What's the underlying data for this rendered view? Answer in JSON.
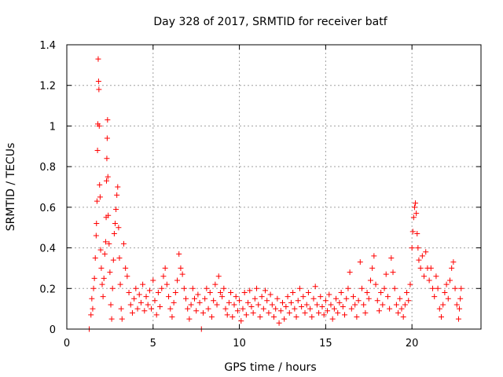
{
  "chart_data": {
    "type": "scatter",
    "title": "Day 328 of 2017, SRMTID for receiver batf",
    "xlabel": "GPS time / hours",
    "ylabel": "SRMTID / TECUs",
    "xlim": [
      0,
      24
    ],
    "ylim": [
      0,
      1.4
    ],
    "xticks": [
      0,
      5,
      10,
      15,
      20
    ],
    "xtick_labels": [
      "0",
      "5",
      "10",
      "15",
      "20"
    ],
    "yticks": [
      0,
      0.2,
      0.4,
      0.6,
      0.8,
      1,
      1.2,
      1.4
    ],
    "ytick_labels": [
      "0",
      "0.2",
      "0.4",
      "0.6",
      "0.8",
      "1",
      "1.2",
      "1.4"
    ],
    "grid": true,
    "marker": "+",
    "series_color": "#ff0000",
    "series": [
      {
        "name": "SRMTID",
        "points": [
          [
            1.3,
            0.0
          ],
          [
            1.4,
            0.07
          ],
          [
            1.45,
            0.15
          ],
          [
            1.5,
            0.1
          ],
          [
            1.55,
            0.2
          ],
          [
            1.6,
            0.25
          ],
          [
            1.65,
            0.35
          ],
          [
            1.7,
            0.46
          ],
          [
            1.72,
            0.52
          ],
          [
            1.75,
            0.63
          ],
          [
            1.78,
            0.88
          ],
          [
            1.8,
            1.01
          ],
          [
            1.82,
            1.33
          ],
          [
            1.84,
            1.22
          ],
          [
            1.86,
            1.18
          ],
          [
            1.88,
            1.0
          ],
          [
            1.9,
            0.71
          ],
          [
            1.93,
            0.65
          ],
          [
            1.96,
            0.39
          ],
          [
            2.0,
            0.3
          ],
          [
            2.05,
            0.22
          ],
          [
            2.1,
            0.16
          ],
          [
            2.15,
            0.25
          ],
          [
            2.2,
            0.37
          ],
          [
            2.25,
            0.43
          ],
          [
            2.28,
            0.55
          ],
          [
            2.3,
            0.73
          ],
          [
            2.32,
            0.84
          ],
          [
            2.34,
            0.94
          ],
          [
            2.36,
            1.03
          ],
          [
            2.38,
            0.75
          ],
          [
            2.4,
            0.56
          ],
          [
            2.45,
            0.42
          ],
          [
            2.5,
            0.28
          ],
          [
            2.55,
            0.12
          ],
          [
            2.6,
            0.05
          ],
          [
            2.65,
            0.2
          ],
          [
            2.7,
            0.34
          ],
          [
            2.75,
            0.47
          ],
          [
            2.8,
            0.52
          ],
          [
            2.85,
            0.59
          ],
          [
            2.9,
            0.66
          ],
          [
            2.95,
            0.7
          ],
          [
            3.0,
            0.5
          ],
          [
            3.05,
            0.35
          ],
          [
            3.1,
            0.22
          ],
          [
            3.15,
            0.1
          ],
          [
            3.2,
            0.05
          ],
          [
            3.3,
            0.42
          ],
          [
            3.4,
            0.3
          ],
          [
            3.5,
            0.26
          ],
          [
            3.6,
            0.18
          ],
          [
            3.7,
            0.12
          ],
          [
            3.8,
            0.08
          ],
          [
            3.9,
            0.15
          ],
          [
            4.0,
            0.2
          ],
          [
            4.1,
            0.1
          ],
          [
            4.2,
            0.17
          ],
          [
            4.3,
            0.13
          ],
          [
            4.4,
            0.22
          ],
          [
            4.5,
            0.09
          ],
          [
            4.6,
            0.16
          ],
          [
            4.7,
            0.12
          ],
          [
            4.8,
            0.19
          ],
          [
            4.9,
            0.1
          ],
          [
            5.0,
            0.24
          ],
          [
            5.1,
            0.14
          ],
          [
            5.2,
            0.07
          ],
          [
            5.3,
            0.18
          ],
          [
            5.4,
            0.11
          ],
          [
            5.5,
            0.2
          ],
          [
            5.6,
            0.26
          ],
          [
            5.7,
            0.3
          ],
          [
            5.8,
            0.22
          ],
          [
            5.9,
            0.16
          ],
          [
            6.0,
            0.1
          ],
          [
            6.1,
            0.06
          ],
          [
            6.2,
            0.13
          ],
          [
            6.3,
            0.18
          ],
          [
            6.4,
            0.24
          ],
          [
            6.5,
            0.37
          ],
          [
            6.6,
            0.3
          ],
          [
            6.7,
            0.27
          ],
          [
            6.8,
            0.2
          ],
          [
            6.9,
            0.15
          ],
          [
            7.0,
            0.1
          ],
          [
            7.1,
            0.05
          ],
          [
            7.2,
            0.12
          ],
          [
            7.3,
            0.2
          ],
          [
            7.4,
            0.15
          ],
          [
            7.5,
            0.09
          ],
          [
            7.6,
            0.17
          ],
          [
            7.7,
            0.13
          ],
          [
            7.8,
            0.0
          ],
          [
            7.9,
            0.08
          ],
          [
            8.0,
            0.15
          ],
          [
            8.1,
            0.2
          ],
          [
            8.2,
            0.1
          ],
          [
            8.3,
            0.18
          ],
          [
            8.4,
            0.06
          ],
          [
            8.5,
            0.14
          ],
          [
            8.6,
            0.22
          ],
          [
            8.7,
            0.12
          ],
          [
            8.8,
            0.26
          ],
          [
            8.9,
            0.18
          ],
          [
            9.0,
            0.16
          ],
          [
            9.1,
            0.2
          ],
          [
            9.2,
            0.1
          ],
          [
            9.3,
            0.07
          ],
          [
            9.4,
            0.13
          ],
          [
            9.5,
            0.18
          ],
          [
            9.6,
            0.06
          ],
          [
            9.7,
            0.12
          ],
          [
            9.8,
            0.16
          ],
          [
            9.9,
            0.09
          ],
          [
            10.0,
            0.14
          ],
          [
            10.1,
            0.04
          ],
          [
            10.2,
            0.1
          ],
          [
            10.3,
            0.18
          ],
          [
            10.4,
            0.07
          ],
          [
            10.5,
            0.13
          ],
          [
            10.6,
            0.19
          ],
          [
            10.7,
            0.11
          ],
          [
            10.8,
            0.08
          ],
          [
            10.9,
            0.15
          ],
          [
            11.0,
            0.2
          ],
          [
            11.1,
            0.12
          ],
          [
            11.2,
            0.06
          ],
          [
            11.3,
            0.16
          ],
          [
            11.4,
            0.1
          ],
          [
            11.5,
            0.19
          ],
          [
            11.6,
            0.14
          ],
          [
            11.7,
            0.08
          ],
          [
            11.8,
            0.17
          ],
          [
            11.9,
            0.12
          ],
          [
            12.0,
            0.06
          ],
          [
            12.1,
            0.1
          ],
          [
            12.2,
            0.15
          ],
          [
            12.3,
            0.03
          ],
          [
            12.4,
            0.09
          ],
          [
            12.5,
            0.13
          ],
          [
            12.6,
            0.05
          ],
          [
            12.7,
            0.11
          ],
          [
            12.8,
            0.16
          ],
          [
            12.9,
            0.08
          ],
          [
            13.0,
            0.13
          ],
          [
            13.1,
            0.18
          ],
          [
            13.2,
            0.1
          ],
          [
            13.3,
            0.06
          ],
          [
            13.4,
            0.14
          ],
          [
            13.5,
            0.2
          ],
          [
            13.6,
            0.11
          ],
          [
            13.7,
            0.16
          ],
          [
            13.8,
            0.08
          ],
          [
            13.9,
            0.12
          ],
          [
            14.0,
            0.18
          ],
          [
            14.1,
            0.1
          ],
          [
            14.2,
            0.06
          ],
          [
            14.3,
            0.15
          ],
          [
            14.4,
            0.21
          ],
          [
            14.5,
            0.12
          ],
          [
            14.6,
            0.08
          ],
          [
            14.7,
            0.16
          ],
          [
            14.8,
            0.11
          ],
          [
            14.9,
            0.07
          ],
          [
            15.0,
            0.14
          ],
          [
            15.1,
            0.09
          ],
          [
            15.2,
            0.17
          ],
          [
            15.3,
            0.12
          ],
          [
            15.4,
            0.05
          ],
          [
            15.5,
            0.1
          ],
          [
            15.6,
            0.15
          ],
          [
            15.7,
            0.08
          ],
          [
            15.8,
            0.13
          ],
          [
            15.9,
            0.18
          ],
          [
            16.0,
            0.11
          ],
          [
            16.1,
            0.07
          ],
          [
            16.2,
            0.15
          ],
          [
            16.3,
            0.2
          ],
          [
            16.4,
            0.28
          ],
          [
            16.5,
            0.1
          ],
          [
            16.6,
            0.16
          ],
          [
            16.7,
            0.12
          ],
          [
            16.8,
            0.06
          ],
          [
            16.9,
            0.14
          ],
          [
            17.0,
            0.33
          ],
          [
            17.1,
            0.2
          ],
          [
            17.2,
            0.12
          ],
          [
            17.3,
            0.08
          ],
          [
            17.4,
            0.18
          ],
          [
            17.5,
            0.15
          ],
          [
            17.6,
            0.24
          ],
          [
            17.7,
            0.3
          ],
          [
            17.8,
            0.36
          ],
          [
            17.9,
            0.22
          ],
          [
            18.0,
            0.14
          ],
          [
            18.1,
            0.09
          ],
          [
            18.2,
            0.18
          ],
          [
            18.3,
            0.12
          ],
          [
            18.4,
            0.2
          ],
          [
            18.5,
            0.27
          ],
          [
            18.6,
            0.16
          ],
          [
            18.7,
            0.1
          ],
          [
            18.8,
            0.35
          ],
          [
            18.9,
            0.28
          ],
          [
            19.0,
            0.2
          ],
          [
            19.1,
            0.12
          ],
          [
            19.2,
            0.08
          ],
          [
            19.3,
            0.15
          ],
          [
            19.4,
            0.1
          ],
          [
            19.5,
            0.06
          ],
          [
            19.6,
            0.12
          ],
          [
            19.7,
            0.18
          ],
          [
            19.8,
            0.14
          ],
          [
            19.9,
            0.22
          ],
          [
            20.0,
            0.4
          ],
          [
            20.05,
            0.48
          ],
          [
            20.1,
            0.55
          ],
          [
            20.15,
            0.6
          ],
          [
            20.2,
            0.62
          ],
          [
            20.25,
            0.57
          ],
          [
            20.3,
            0.47
          ],
          [
            20.35,
            0.4
          ],
          [
            20.4,
            0.34
          ],
          [
            20.5,
            0.3
          ],
          [
            20.6,
            0.36
          ],
          [
            20.7,
            0.26
          ],
          [
            20.8,
            0.38
          ],
          [
            20.9,
            0.3
          ],
          [
            21.0,
            0.24
          ],
          [
            21.1,
            0.3
          ],
          [
            21.2,
            0.2
          ],
          [
            21.3,
            0.16
          ],
          [
            21.4,
            0.26
          ],
          [
            21.5,
            0.2
          ],
          [
            21.6,
            0.1
          ],
          [
            21.7,
            0.06
          ],
          [
            21.8,
            0.12
          ],
          [
            21.9,
            0.18
          ],
          [
            22.0,
            0.22
          ],
          [
            22.1,
            0.15
          ],
          [
            22.2,
            0.24
          ],
          [
            22.3,
            0.3
          ],
          [
            22.4,
            0.33
          ],
          [
            22.5,
            0.2
          ],
          [
            22.6,
            0.12
          ],
          [
            22.7,
            0.05
          ],
          [
            22.75,
            0.1
          ],
          [
            22.8,
            0.15
          ],
          [
            22.85,
            0.2
          ]
        ]
      }
    ]
  }
}
